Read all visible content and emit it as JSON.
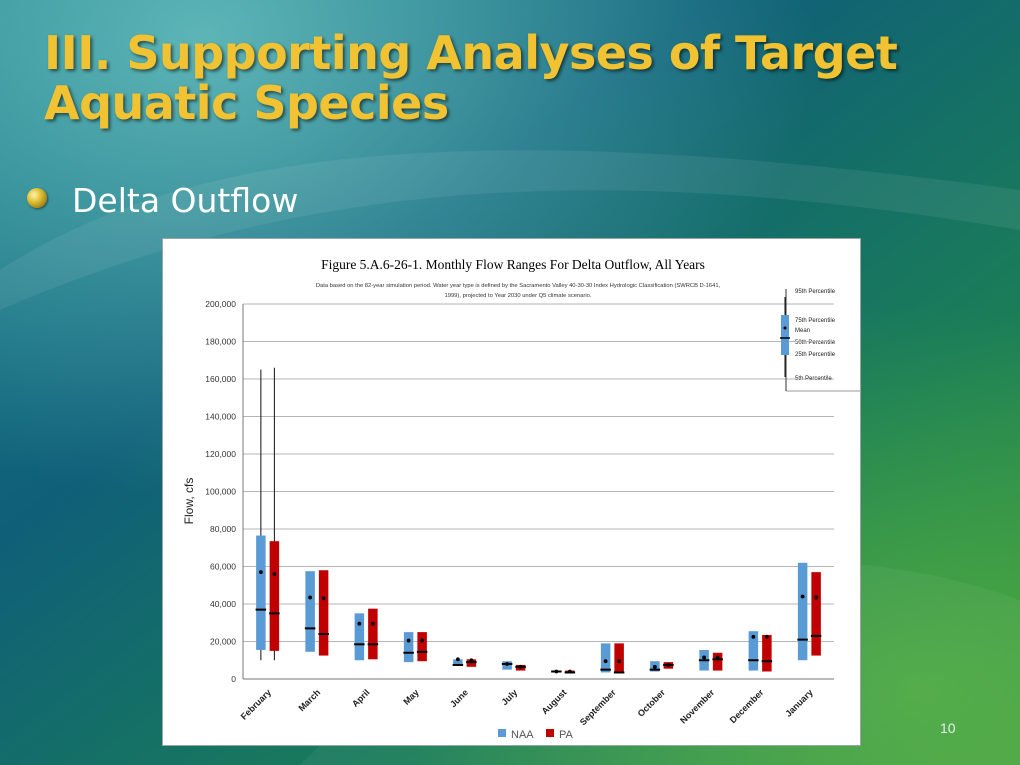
{
  "slide": {
    "title": "III. Supporting Analyses of Target Aquatic Species",
    "bullet": "Delta Outflow",
    "page_number": "10"
  },
  "colors": {
    "title": "#f1c232",
    "naa": "#5b9bd5",
    "pa": "#c00000"
  },
  "chart_data": {
    "type": "box",
    "title": "Figure 5.A.6-26-1. Monthly Flow Ranges For Delta Outflow, All Years",
    "subtitle_line1": "Data based on the 82-year simulation period.  Water year type is defined by the Sacramento Valley 40-30-30 Index Hydrologic Classification (SWRCB D-1641,",
    "subtitle_line2": "1999), projected to Year 2030 under Q5 climate scenario.",
    "ylabel": "Flow, cfs",
    "ylim": [
      0,
      200000
    ],
    "yticks": [
      "0",
      "20,000",
      "40,000",
      "60,000",
      "80,000",
      "100,000",
      "120,000",
      "140,000",
      "160,000",
      "180,000",
      "200,000"
    ],
    "grid": true,
    "categories": [
      "February",
      "March",
      "April",
      "May",
      "June",
      "July",
      "August",
      "September",
      "October",
      "November",
      "December",
      "January"
    ],
    "series": [
      {
        "name": "NAA",
        "boxes": [
          {
            "p5": 10000,
            "p25": 15500,
            "p50": 37000,
            "mean": 57000,
            "p75": 76500,
            "p95": 165000
          },
          {
            "p25": 14500,
            "p50": 27000,
            "mean": 43500,
            "p75": 57500
          },
          {
            "p25": 10000,
            "p50": 18500,
            "mean": 29500,
            "p75": 35000
          },
          {
            "p25": 9000,
            "p50": 14000,
            "mean": 20500,
            "p75": 25000
          },
          {
            "p25": 7000,
            "p50": 7500,
            "mean": 10500,
            "p75": 10500
          },
          {
            "p25": 5000,
            "p50": 8000,
            "mean": 8000,
            "p75": 9500
          },
          {
            "p25": 3500,
            "p50": 4000,
            "mean": 4000,
            "p75": 4500
          },
          {
            "p25": 3500,
            "p50": 5000,
            "mean": 9500,
            "p75": 19000
          },
          {
            "p25": 4000,
            "p50": 5000,
            "mean": 6500,
            "p75": 9500
          },
          {
            "p25": 4500,
            "p50": 10000,
            "mean": 11500,
            "p75": 15500
          },
          {
            "p25": 4500,
            "p50": 10000,
            "mean": 22500,
            "p75": 25500
          },
          {
            "p25": 10000,
            "p50": 21000,
            "mean": 44000,
            "p75": 62000
          }
        ]
      },
      {
        "name": "PA",
        "boxes": [
          {
            "p5": 10000,
            "p25": 15000,
            "p50": 35000,
            "mean": 56000,
            "p75": 73500,
            "p95": 166000
          },
          {
            "p25": 12500,
            "p50": 24000,
            "mean": 43000,
            "p75": 58000
          },
          {
            "p25": 10500,
            "p50": 18500,
            "mean": 29500,
            "p75": 37500
          },
          {
            "p25": 9500,
            "p50": 14500,
            "mean": 20500,
            "p75": 25000
          },
          {
            "p25": 6500,
            "p50": 9000,
            "mean": 10000,
            "p75": 10500
          },
          {
            "p25": 4500,
            "p50": 6500,
            "mean": 6500,
            "p75": 7500
          },
          {
            "p25": 3000,
            "p50": 3500,
            "mean": 4000,
            "p75": 4500
          },
          {
            "p25": 3000,
            "p50": 3500,
            "mean": 9500,
            "p75": 19000
          },
          {
            "p25": 5500,
            "p50": 7500,
            "mean": 7500,
            "p75": 9000
          },
          {
            "p25": 4500,
            "p50": 10500,
            "mean": 11500,
            "p75": 14000
          },
          {
            "p25": 4000,
            "p50": 9500,
            "mean": 22500,
            "p75": 23500
          },
          {
            "p25": 12500,
            "p50": 23000,
            "mean": 43500,
            "p75": 57000
          }
        ]
      }
    ],
    "key": {
      "p95": "95th Percentile",
      "p75": "75th Percentile",
      "mean": "Mean",
      "p50": "50th Percentile",
      "p25": "25th Percentile",
      "p5": "5th Percentile"
    },
    "legend_labels": [
      "NAA",
      "PA"
    ],
    "legend_position": "bottom"
  }
}
